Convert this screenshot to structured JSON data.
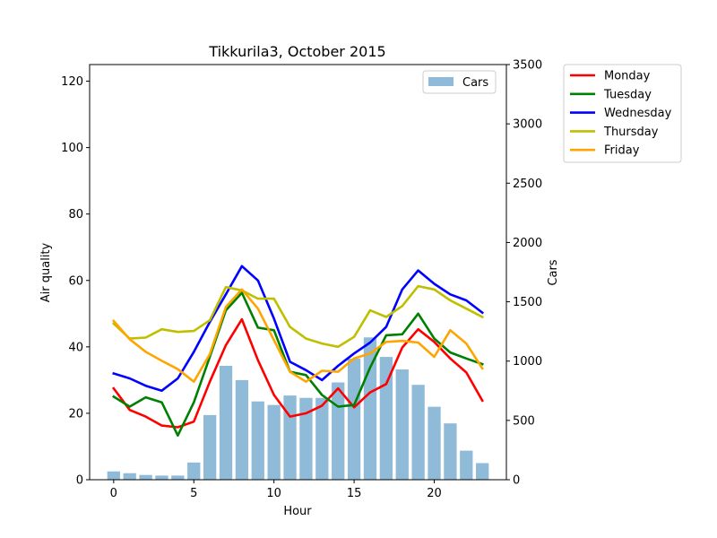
{
  "chart_data": {
    "type": "bar+line",
    "title": "Tikkurila3, October 2015",
    "xlabel": "Hour",
    "ylabel_left": "Air quality",
    "ylabel_right": "Cars",
    "xlim": [
      -1.5,
      24.5
    ],
    "ylim_left": [
      0,
      125
    ],
    "ylim_right": [
      0,
      3500
    ],
    "x_ticks": [
      0,
      5,
      10,
      15,
      20
    ],
    "y_ticks_left": [
      0,
      20,
      40,
      60,
      80,
      100,
      120
    ],
    "y_ticks_right": [
      0,
      500,
      1000,
      1500,
      2000,
      2500,
      3000,
      3500
    ],
    "hours": [
      0,
      1,
      2,
      3,
      4,
      5,
      6,
      7,
      8,
      9,
      10,
      11,
      12,
      13,
      14,
      15,
      16,
      17,
      18,
      19,
      20,
      21,
      22,
      23
    ],
    "bars": {
      "name": "Cars",
      "color": "#1f77b4",
      "values": [
        70,
        55,
        40,
        35,
        35,
        145,
        545,
        960,
        840,
        660,
        630,
        710,
        690,
        690,
        820,
        1020,
        1200,
        1035,
        930,
        800,
        615,
        475,
        245,
        140
      ]
    },
    "series": [
      {
        "name": "Monday",
        "color": "#ff0000",
        "values": [
          27.5,
          21,
          19,
          16.3,
          15.8,
          17.5,
          29.5,
          40.5,
          48.3,
          36,
          25.5,
          19,
          20,
          22.3,
          27.5,
          21.8,
          26.3,
          28.8,
          39.8,
          45.3,
          41.5,
          36.5,
          32.3,
          23.8
        ]
      },
      {
        "name": "Tuesday",
        "color": "#008000",
        "values": [
          25,
          22,
          24.8,
          23.3,
          13.3,
          23.3,
          37,
          51,
          56.3,
          45.8,
          45,
          32.5,
          31.5,
          25.5,
          22,
          22.5,
          33.8,
          43.5,
          43.8,
          50,
          42.5,
          38.3,
          36.5,
          34.8
        ]
      },
      {
        "name": "Wednesday",
        "color": "#0000ff",
        "values": [
          32,
          30.5,
          28.3,
          26.8,
          30.5,
          38.5,
          47.5,
          55.8,
          64.3,
          60,
          48.5,
          35.5,
          33,
          30,
          34.3,
          38,
          41.3,
          46,
          57.3,
          63,
          59,
          55.8,
          54,
          50.3
        ]
      },
      {
        "name": "Thursday",
        "color": "#bfbf00",
        "values": [
          47,
          42.5,
          42.8,
          45.3,
          44.5,
          44.8,
          48,
          58,
          57,
          54.5,
          54.5,
          46,
          42.5,
          41,
          40,
          43,
          51,
          49,
          52.3,
          58.3,
          57.3,
          54,
          51.5,
          49
        ]
      },
      {
        "name": "Friday",
        "color": "#ffa500",
        "values": [
          47.8,
          42.3,
          38.5,
          35.8,
          33.3,
          29.5,
          37.8,
          52,
          57.3,
          51.5,
          42,
          32.5,
          29.5,
          32.8,
          32.5,
          36.5,
          38,
          41.5,
          41.8,
          41.3,
          37,
          45,
          41,
          33.5
        ]
      }
    ],
    "legend_bars_position": "upper right, inside plot",
    "legend_lines_position": "outside plot, right",
    "grid": false
  }
}
